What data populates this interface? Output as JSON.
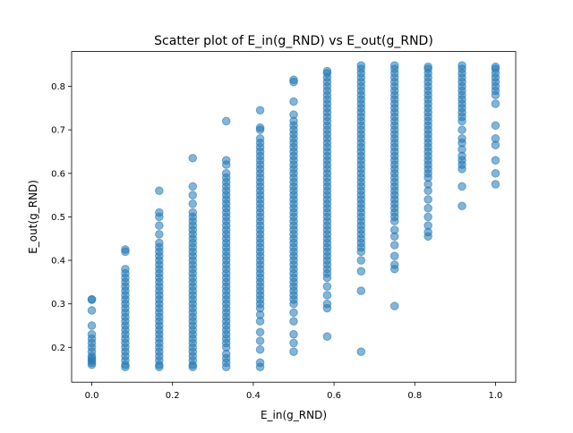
{
  "chart_data": {
    "type": "scatter",
    "title": "Scatter plot of E_in(g_RND) vs E_out(g_RND)",
    "xlabel": "E_in(g_RND)",
    "ylabel": "E_out(g_RND)",
    "xlim": [
      -0.05,
      1.05
    ],
    "ylim": [
      0.12,
      0.88
    ],
    "x_ticks": [
      0.0,
      0.2,
      0.4,
      0.6,
      0.8,
      1.0
    ],
    "x_tick_labels": [
      "0.0",
      "0.2",
      "0.4",
      "0.6",
      "0.8",
      "1.0"
    ],
    "y_ticks": [
      0.2,
      0.3,
      0.4,
      0.5,
      0.6,
      0.7,
      0.8
    ],
    "y_tick_labels": [
      "0.2",
      "0.3",
      "0.4",
      "0.5",
      "0.6",
      "0.7",
      "0.8"
    ],
    "grid": false,
    "marker_color": "#1f77b4",
    "marker_alpha": 0.55,
    "columns": [
      {
        "x": 0.0,
        "y": [
          0.16,
          0.165,
          0.17,
          0.175,
          0.18,
          0.19,
          0.2,
          0.21,
          0.22,
          0.23,
          0.25,
          0.285,
          0.31,
          0.31
        ]
      },
      {
        "x": 0.083,
        "y": [
          0.155,
          0.16,
          0.17,
          0.18,
          0.19,
          0.2,
          0.21,
          0.22,
          0.23,
          0.24,
          0.25,
          0.26,
          0.27,
          0.28,
          0.29,
          0.3,
          0.31,
          0.32,
          0.33,
          0.34,
          0.35,
          0.36,
          0.37,
          0.38,
          0.42,
          0.425
        ]
      },
      {
        "x": 0.167,
        "y": [
          0.155,
          0.16,
          0.17,
          0.18,
          0.19,
          0.2,
          0.21,
          0.22,
          0.23,
          0.24,
          0.25,
          0.26,
          0.27,
          0.28,
          0.29,
          0.3,
          0.31,
          0.32,
          0.33,
          0.34,
          0.35,
          0.36,
          0.37,
          0.38,
          0.39,
          0.4,
          0.41,
          0.42,
          0.43,
          0.44,
          0.46,
          0.48,
          0.5,
          0.51,
          0.56
        ]
      },
      {
        "x": 0.25,
        "y": [
          0.155,
          0.16,
          0.17,
          0.18,
          0.19,
          0.2,
          0.21,
          0.22,
          0.23,
          0.24,
          0.25,
          0.26,
          0.27,
          0.28,
          0.29,
          0.3,
          0.31,
          0.32,
          0.33,
          0.34,
          0.35,
          0.36,
          0.37,
          0.38,
          0.39,
          0.4,
          0.41,
          0.42,
          0.43,
          0.44,
          0.45,
          0.46,
          0.47,
          0.48,
          0.49,
          0.5,
          0.51,
          0.53,
          0.55,
          0.57,
          0.635
        ]
      },
      {
        "x": 0.333,
        "y": [
          0.155,
          0.165,
          0.175,
          0.185,
          0.2,
          0.21,
          0.22,
          0.23,
          0.24,
          0.25,
          0.26,
          0.27,
          0.28,
          0.29,
          0.3,
          0.31,
          0.32,
          0.33,
          0.34,
          0.35,
          0.36,
          0.37,
          0.38,
          0.39,
          0.4,
          0.41,
          0.42,
          0.43,
          0.44,
          0.45,
          0.46,
          0.47,
          0.48,
          0.49,
          0.5,
          0.51,
          0.52,
          0.53,
          0.54,
          0.55,
          0.56,
          0.57,
          0.58,
          0.59,
          0.6,
          0.62,
          0.63,
          0.72
        ]
      },
      {
        "x": 0.417,
        "y": [
          0.155,
          0.165,
          0.195,
          0.215,
          0.235,
          0.26,
          0.275,
          0.29,
          0.3,
          0.31,
          0.32,
          0.33,
          0.34,
          0.35,
          0.36,
          0.37,
          0.38,
          0.39,
          0.4,
          0.41,
          0.42,
          0.43,
          0.44,
          0.45,
          0.46,
          0.47,
          0.48,
          0.49,
          0.5,
          0.51,
          0.52,
          0.53,
          0.54,
          0.55,
          0.56,
          0.57,
          0.58,
          0.59,
          0.6,
          0.61,
          0.62,
          0.63,
          0.64,
          0.65,
          0.66,
          0.67,
          0.68,
          0.7,
          0.705,
          0.745
        ]
      },
      {
        "x": 0.5,
        "y": [
          0.19,
          0.21,
          0.23,
          0.26,
          0.28,
          0.3,
          0.31,
          0.32,
          0.33,
          0.34,
          0.35,
          0.36,
          0.37,
          0.38,
          0.39,
          0.4,
          0.41,
          0.42,
          0.43,
          0.44,
          0.45,
          0.46,
          0.47,
          0.48,
          0.49,
          0.5,
          0.51,
          0.52,
          0.53,
          0.54,
          0.55,
          0.56,
          0.57,
          0.58,
          0.59,
          0.6,
          0.61,
          0.62,
          0.63,
          0.64,
          0.65,
          0.66,
          0.67,
          0.68,
          0.69,
          0.7,
          0.71,
          0.72,
          0.735,
          0.765,
          0.81,
          0.815
        ]
      },
      {
        "x": 0.583,
        "y": [
          0.225,
          0.29,
          0.3,
          0.32,
          0.34,
          0.36,
          0.37,
          0.38,
          0.39,
          0.4,
          0.41,
          0.42,
          0.43,
          0.44,
          0.45,
          0.46,
          0.47,
          0.48,
          0.49,
          0.5,
          0.51,
          0.52,
          0.53,
          0.54,
          0.55,
          0.56,
          0.57,
          0.58,
          0.59,
          0.6,
          0.61,
          0.62,
          0.63,
          0.64,
          0.65,
          0.66,
          0.67,
          0.68,
          0.69,
          0.7,
          0.71,
          0.72,
          0.73,
          0.74,
          0.75,
          0.76,
          0.77,
          0.78,
          0.79,
          0.8,
          0.81,
          0.82,
          0.83,
          0.835
        ]
      },
      {
        "x": 0.667,
        "y": [
          0.19,
          0.33,
          0.375,
          0.4,
          0.42,
          0.43,
          0.44,
          0.45,
          0.46,
          0.47,
          0.48,
          0.49,
          0.5,
          0.51,
          0.52,
          0.53,
          0.54,
          0.55,
          0.56,
          0.57,
          0.58,
          0.59,
          0.6,
          0.61,
          0.62,
          0.63,
          0.64,
          0.65,
          0.66,
          0.67,
          0.68,
          0.69,
          0.7,
          0.71,
          0.72,
          0.73,
          0.74,
          0.75,
          0.76,
          0.77,
          0.78,
          0.79,
          0.8,
          0.81,
          0.82,
          0.83,
          0.84,
          0.848
        ]
      },
      {
        "x": 0.75,
        "y": [
          0.295,
          0.38,
          0.39,
          0.41,
          0.435,
          0.455,
          0.47,
          0.49,
          0.5,
          0.51,
          0.52,
          0.53,
          0.54,
          0.55,
          0.56,
          0.57,
          0.58,
          0.59,
          0.6,
          0.61,
          0.62,
          0.63,
          0.64,
          0.65,
          0.66,
          0.67,
          0.68,
          0.69,
          0.7,
          0.71,
          0.72,
          0.73,
          0.74,
          0.75,
          0.76,
          0.77,
          0.78,
          0.79,
          0.8,
          0.81,
          0.82,
          0.83,
          0.84,
          0.848
        ]
      },
      {
        "x": 0.833,
        "y": [
          0.455,
          0.465,
          0.48,
          0.5,
          0.52,
          0.54,
          0.56,
          0.575,
          0.59,
          0.6,
          0.61,
          0.62,
          0.63,
          0.64,
          0.65,
          0.66,
          0.67,
          0.68,
          0.69,
          0.7,
          0.71,
          0.72,
          0.73,
          0.74,
          0.75,
          0.76,
          0.77,
          0.78,
          0.79,
          0.8,
          0.81,
          0.82,
          0.83,
          0.84,
          0.845
        ]
      },
      {
        "x": 0.917,
        "y": [
          0.525,
          0.57,
          0.61,
          0.62,
          0.63,
          0.64,
          0.655,
          0.67,
          0.68,
          0.7,
          0.72,
          0.73,
          0.74,
          0.75,
          0.76,
          0.77,
          0.78,
          0.79,
          0.8,
          0.81,
          0.82,
          0.83,
          0.84,
          0.848
        ]
      },
      {
        "x": 1.0,
        "y": [
          0.575,
          0.6,
          0.63,
          0.665,
          0.68,
          0.71,
          0.76,
          0.78,
          0.79,
          0.8,
          0.81,
          0.82,
          0.83,
          0.84,
          0.845
        ]
      }
    ]
  }
}
